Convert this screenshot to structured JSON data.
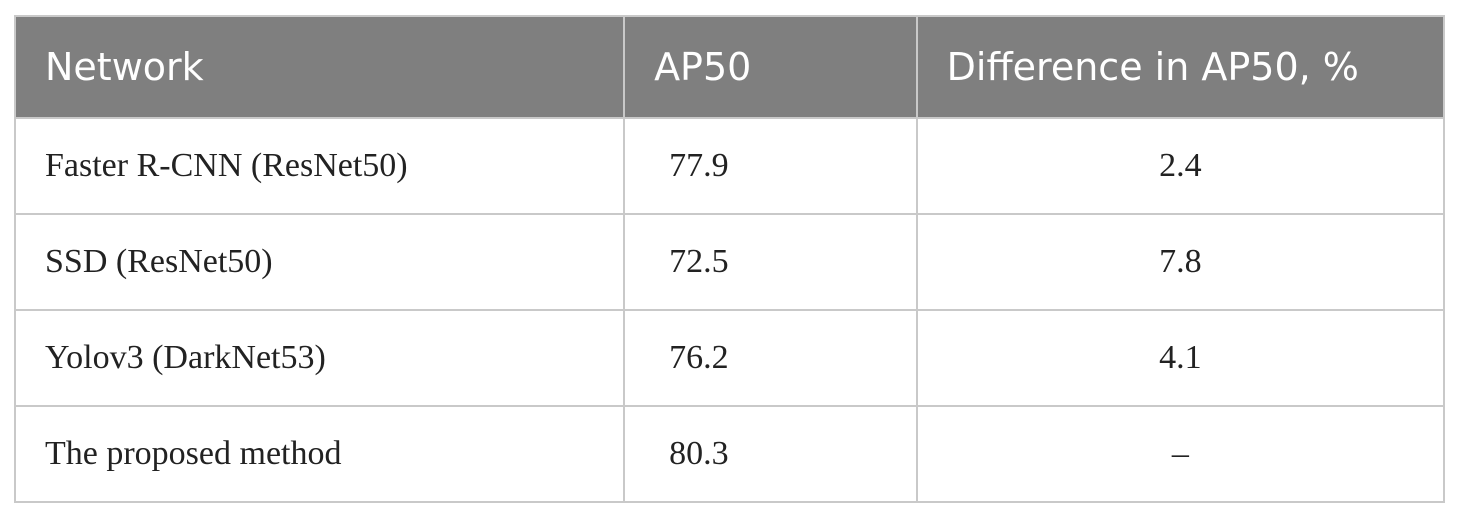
{
  "table": {
    "header": [
      "Network",
      "AP50",
      "Difference in AP50, %"
    ],
    "rows": [
      [
        "Faster R-CNN (ResNet50)",
        "77.9",
        "2.4"
      ],
      [
        "SSD (ResNet50)",
        "72.5",
        "7.8"
      ],
      [
        "Yolov3 (DarkNet53)",
        "76.2",
        "4.1"
      ],
      [
        "The proposed method",
        "80.3",
        "–"
      ]
    ]
  }
}
